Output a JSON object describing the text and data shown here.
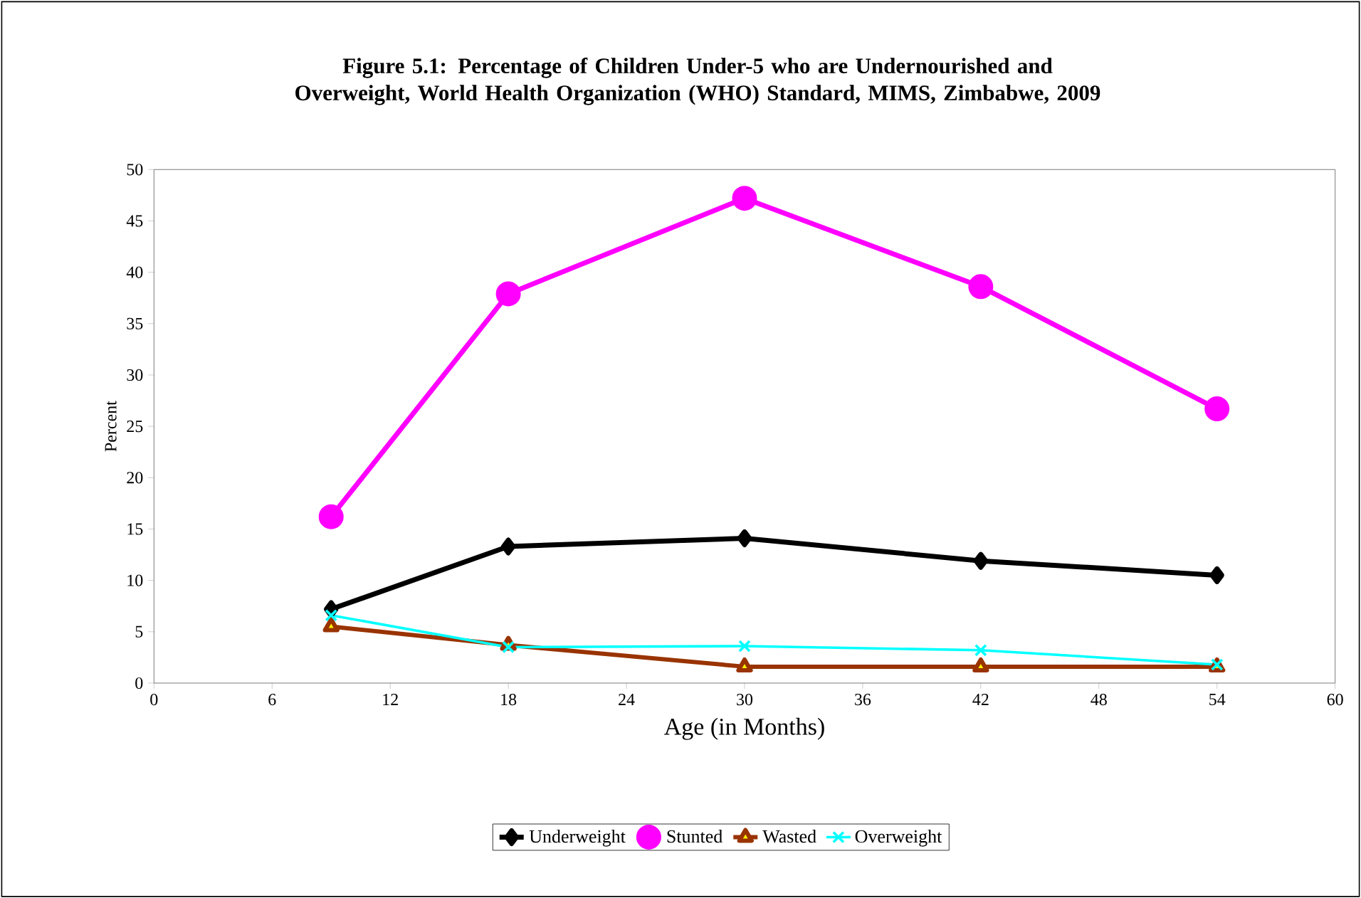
{
  "chart_data": {
    "type": "line",
    "title": "Figure 5.1: Percentage of Children Under-5 who are Undernourished and Overweight, World Health Organization  (WHO) Standard, MIMS, Zimbabwe, 2009",
    "xlabel": "Age (in Months)",
    "ylabel": "Percent",
    "x": [
      9,
      18,
      30,
      42,
      54
    ],
    "series": [
      {
        "name": "Underweight",
        "color": "#000000",
        "marker": "diamond",
        "values": [
          7.2,
          13.3,
          14.1,
          11.9,
          10.5
        ]
      },
      {
        "name": "Stunted",
        "color": "#ff00ff",
        "marker": "circle",
        "values": [
          16.2,
          37.9,
          47.2,
          38.6,
          26.7
        ]
      },
      {
        "name": "Wasted",
        "color": "#993300",
        "marker": "triangle",
        "values": [
          5.5,
          3.7,
          1.6,
          1.6,
          1.6
        ]
      },
      {
        "name": "Overweight",
        "color": "#00ffff",
        "marker": "cross",
        "values": [
          6.6,
          3.5,
          3.6,
          3.2,
          1.8
        ]
      }
    ],
    "xlim": [
      0,
      60
    ],
    "xticks": [
      0,
      6,
      12,
      18,
      24,
      30,
      36,
      42,
      48,
      54,
      60
    ],
    "ylim": [
      0,
      50
    ],
    "yticks": [
      0,
      5,
      10,
      15,
      20,
      25,
      30,
      35,
      40,
      45,
      50
    ],
    "grid": false,
    "legend": "bottom"
  }
}
